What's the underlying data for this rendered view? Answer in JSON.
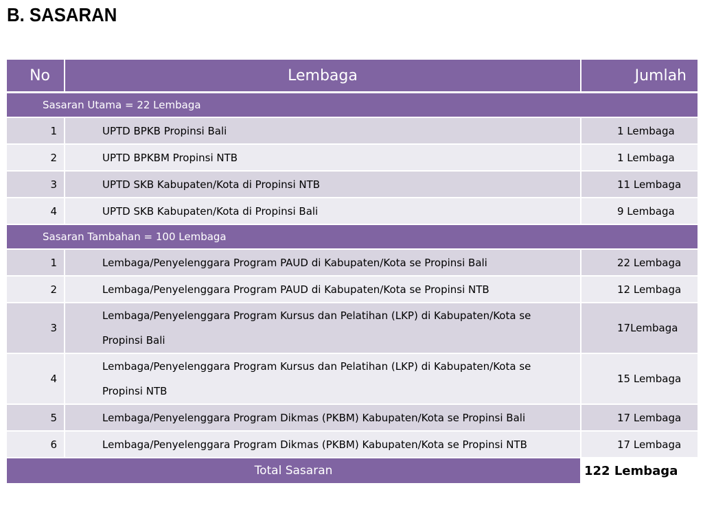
{
  "title": "B. SASARAN",
  "table": {
    "headers": {
      "no": "No",
      "lembaga": "Lembaga",
      "jumlah": "Jumlah"
    },
    "sections": [
      {
        "label": "Sasaran Utama = 22 Lembaga",
        "rows": [
          {
            "no": "1",
            "lembaga": "UPTD BPKB Propinsi Bali",
            "jumlah": "1 Lembaga"
          },
          {
            "no": "2",
            "lembaga": "UPTD BPKBM Propinsi NTB",
            "jumlah": "1 Lembaga"
          },
          {
            "no": "3",
            "lembaga": "UPTD SKB Kabupaten/Kota di Propinsi NTB",
            "jumlah": "11 Lembaga"
          },
          {
            "no": "4",
            "lembaga": "UPTD SKB Kabupaten/Kota di Propinsi Bali",
            "jumlah": "9 Lembaga"
          }
        ]
      },
      {
        "label": "Sasaran Tambahan = 100 Lembaga",
        "rows": [
          {
            "no": "1",
            "lembaga": "Lembaga/Penyelenggara Program PAUD di Kabupaten/Kota se Propinsi Bali",
            "jumlah": "22 Lembaga"
          },
          {
            "no": "2",
            "lembaga": "Lembaga/Penyelenggara Program PAUD di Kabupaten/Kota se Propinsi NTB",
            "jumlah": "12 Lembaga"
          },
          {
            "no": "3",
            "lembaga": "Lembaga/Penyelenggara Program Kursus dan Pelatihan (LKP) di Kabupaten/Kota se Propinsi Bali",
            "jumlah": "17Lembaga"
          },
          {
            "no": "4",
            "lembaga": "Lembaga/Penyelenggara Program Kursus dan Pelatihan (LKP) di Kabupaten/Kota se Propinsi NTB",
            "jumlah": "15 Lembaga"
          },
          {
            "no": "5",
            "lembaga": "Lembaga/Penyelenggara Program Dikmas (PKBM) Kabupaten/Kota se Propinsi Bali",
            "jumlah": "17 Lembaga"
          },
          {
            "no": "6",
            "lembaga": "Lembaga/Penyelenggara Program Dikmas (PKBM) Kabupaten/Kota se Propinsi NTB",
            "jumlah": "17 Lembaga"
          }
        ]
      }
    ],
    "total": {
      "label": "Total Sasaran",
      "value": "122 Lembaga"
    }
  },
  "colors": {
    "header_bg": "#8064a2",
    "row_odd_bg": "#d8d4e0",
    "row_even_bg": "#ecebf1"
  }
}
